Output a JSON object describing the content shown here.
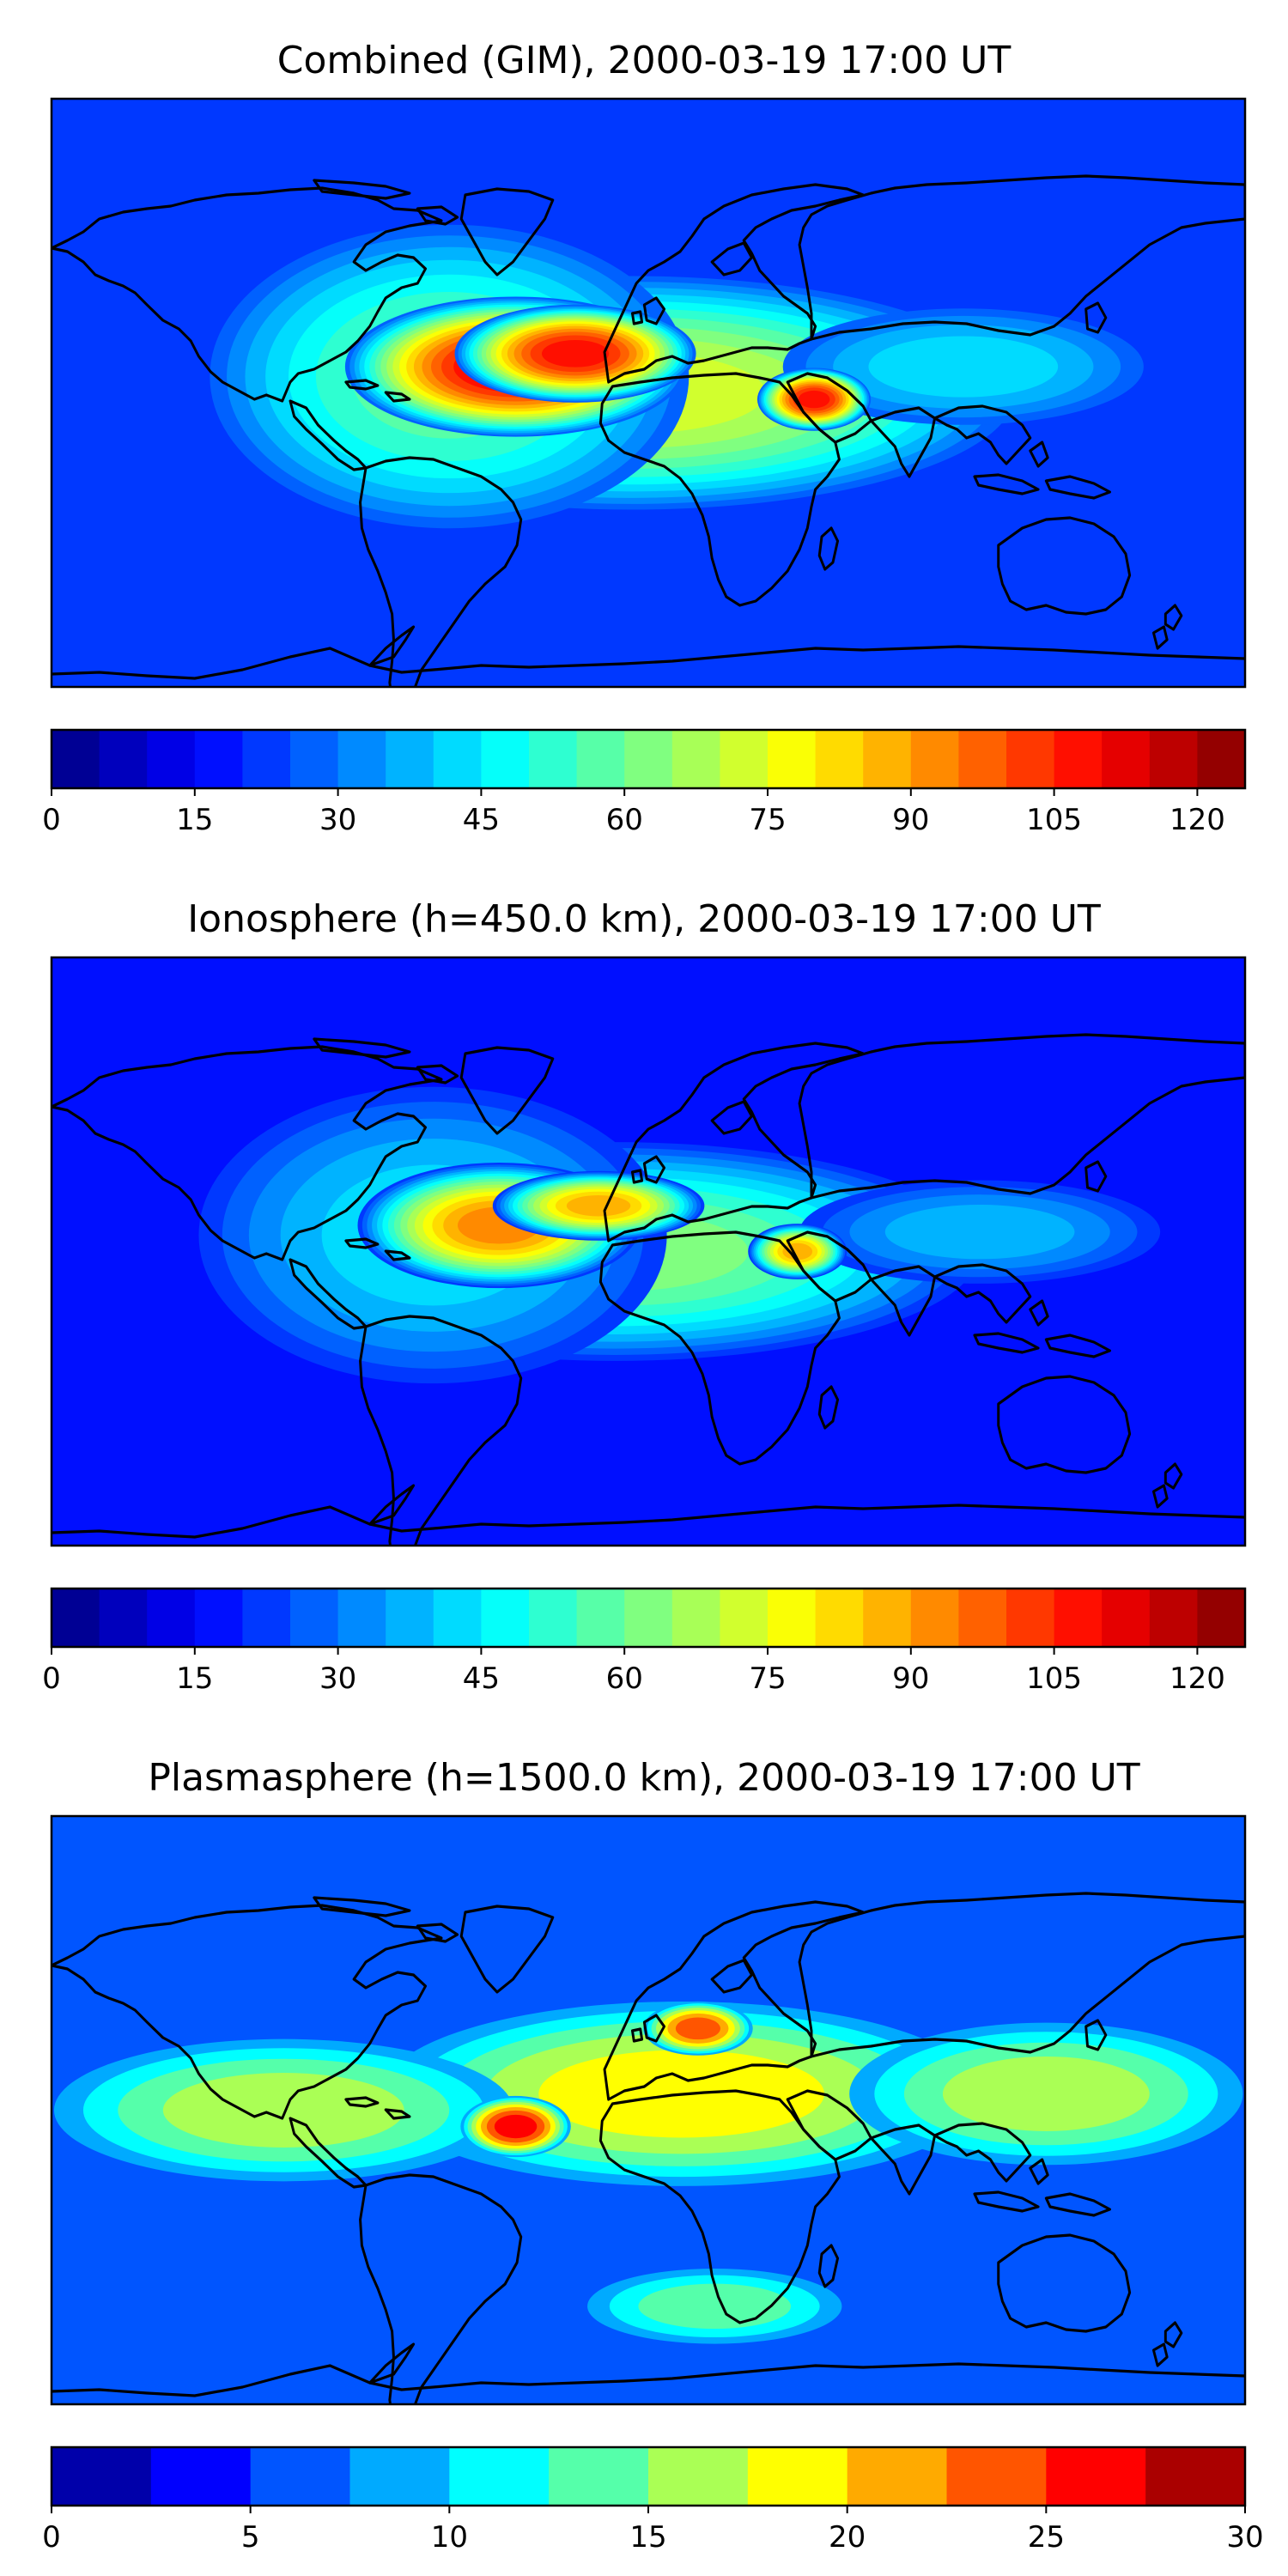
{
  "panels": [
    {
      "title": "Combined (GIM), 2000-03-19 17:00 UT",
      "colorbar": {
        "min": 0,
        "max": 125,
        "levels": 25,
        "tick_labels": [
          "0",
          "15",
          "30",
          "45",
          "60",
          "75",
          "90",
          "105",
          "120"
        ],
        "tick_values": [
          0,
          15,
          30,
          45,
          60,
          75,
          90,
          105,
          120
        ]
      },
      "background_level": 22,
      "blobs": [
        {
          "lon": -40,
          "lat": 8,
          "rx": 48,
          "ry": 20,
          "v": 112
        },
        {
          "lon": -22,
          "lat": 12,
          "rx": 34,
          "ry": 14,
          "v": 108
        },
        {
          "lon": 50,
          "lat": -2,
          "rx": 16,
          "ry": 9,
          "v": 105
        },
        {
          "lon": -5,
          "lat": 0,
          "rx": 110,
          "ry": 34,
          "v": 70
        },
        {
          "lon": -60,
          "lat": 5,
          "rx": 70,
          "ry": 45,
          "v": 55
        },
        {
          "lon": 95,
          "lat": 8,
          "rx": 55,
          "ry": 18,
          "v": 40
        }
      ]
    },
    {
      "title": "Ionosphere  (h=450.0 km), 2000-03-19 17:00 UT",
      "colorbar": {
        "min": 0,
        "max": 125,
        "levels": 25,
        "tick_labels": [
          "0",
          "15",
          "30",
          "45",
          "60",
          "75",
          "90",
          "105",
          "120"
        ],
        "tick_values": [
          0,
          15,
          30,
          45,
          60,
          75,
          90,
          105,
          120
        ]
      },
      "background_level": 15,
      "blobs": [
        {
          "lon": -45,
          "lat": 8,
          "rx": 40,
          "ry": 18,
          "v": 90
        },
        {
          "lon": -15,
          "lat": 14,
          "rx": 30,
          "ry": 10,
          "v": 88
        },
        {
          "lon": 45,
          "lat": 0,
          "rx": 14,
          "ry": 8,
          "v": 85
        },
        {
          "lon": -10,
          "lat": 0,
          "rx": 105,
          "ry": 32,
          "v": 60
        },
        {
          "lon": -65,
          "lat": 5,
          "rx": 70,
          "ry": 45,
          "v": 42
        },
        {
          "lon": 100,
          "lat": 6,
          "rx": 55,
          "ry": 16,
          "v": 35
        }
      ]
    },
    {
      "title": "Plasmasphere (h=1500.0 km), 2000-03-19 17:00 UT",
      "colorbar": {
        "min": 0,
        "max": 30,
        "levels": 12,
        "tick_labels": [
          "0",
          "5",
          "10",
          "15",
          "20",
          "25",
          "30"
        ],
        "tick_values": [
          0,
          5,
          10,
          15,
          20,
          25,
          30
        ]
      },
      "background_level": 6,
      "blobs": [
        {
          "lon": -40,
          "lat": -5,
          "rx": 16,
          "ry": 9,
          "v": 27
        },
        {
          "lon": 15,
          "lat": 25,
          "rx": 16,
          "ry": 8,
          "v": 24
        },
        {
          "lon": 10,
          "lat": 5,
          "rx": 90,
          "ry": 28,
          "v": 19
        },
        {
          "lon": -110,
          "lat": 0,
          "rx": 70,
          "ry": 22,
          "v": 16
        },
        {
          "lon": 120,
          "lat": 5,
          "rx": 60,
          "ry": 22,
          "v": 16
        },
        {
          "lon": 20,
          "lat": -60,
          "rx": 40,
          "ry": 12,
          "v": 13
        },
        {
          "lon": 0,
          "lat": 75,
          "rx": 150,
          "ry": 8,
          "v": 3
        }
      ]
    }
  ],
  "colormap": "jet",
  "projection": "plate-carree"
}
